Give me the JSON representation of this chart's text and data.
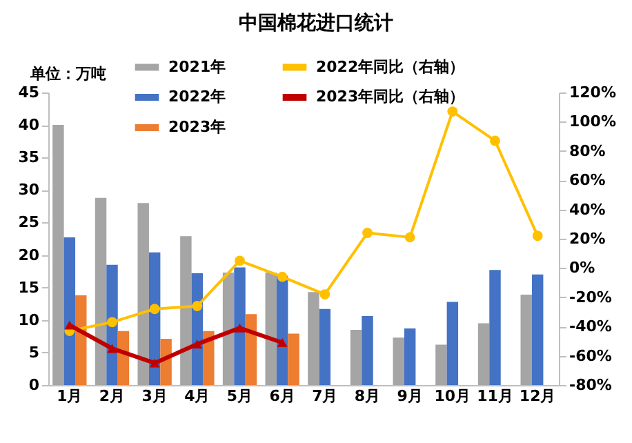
{
  "chart_data": {
    "type": "bar",
    "title": "中国棉花进口统计",
    "annotations": [
      "单位：万吨"
    ],
    "categories": [
      "1月",
      "2月",
      "3月",
      "4月",
      "5月",
      "6月",
      "7月",
      "8月",
      "9月",
      "10月",
      "11月",
      "12月"
    ],
    "series": [
      {
        "name": "2021年",
        "color": "#a5a5a5",
        "values": [
          40.0,
          28.8,
          28.0,
          22.9,
          17.3,
          17.3,
          14.3,
          8.5,
          7.3,
          6.2,
          9.5,
          13.9
        ]
      },
      {
        "name": "2022年",
        "color": "#4472c4",
        "values": [
          22.7,
          18.5,
          20.4,
          17.2,
          18.1,
          16.8,
          11.7,
          10.6,
          8.7,
          12.8,
          17.7,
          17.0
        ]
      },
      {
        "name": "2023年",
        "color": "#ed7d31",
        "values": [
          13.8,
          8.3,
          7.1,
          8.3,
          10.9,
          7.9,
          null,
          null,
          null,
          null,
          null,
          null
        ]
      },
      {
        "name": "2022年同比（右轴）",
        "type": "line",
        "axis": "y2",
        "marker": "circle",
        "color": "#ffc000",
        "values": [
          -43,
          -37,
          -28,
          -26,
          5,
          -6,
          -18,
          24,
          21,
          107,
          87,
          22
        ]
      },
      {
        "name": "2023年同比（右轴）",
        "type": "line",
        "axis": "y2",
        "marker": "triangle",
        "color": "#c00000",
        "values": [
          -39,
          -55,
          -65,
          -52,
          -41,
          -51,
          null,
          null,
          null,
          null,
          null,
          null
        ]
      }
    ],
    "ylim": [
      0,
      45
    ],
    "yticks": [
      0,
      5,
      10,
      15,
      20,
      25,
      30,
      35,
      40,
      45
    ],
    "y2lim": [
      -80,
      120
    ],
    "y2ticks": [
      {
        "value": -80,
        "label": "-80%"
      },
      {
        "value": -60,
        "label": "-60%"
      },
      {
        "value": -40,
        "label": "-40%"
      },
      {
        "value": -20,
        "label": "-20%"
      },
      {
        "value": 0,
        "label": "0%"
      },
      {
        "value": 20,
        "label": "20%"
      },
      {
        "value": 40,
        "label": "40%"
      },
      {
        "value": 60,
        "label": "60%"
      },
      {
        "value": 80,
        "label": "80%"
      },
      {
        "value": 100,
        "label": "100%"
      },
      {
        "value": 120,
        "label": "120%"
      }
    ],
    "grid": false,
    "legend": "top"
  }
}
